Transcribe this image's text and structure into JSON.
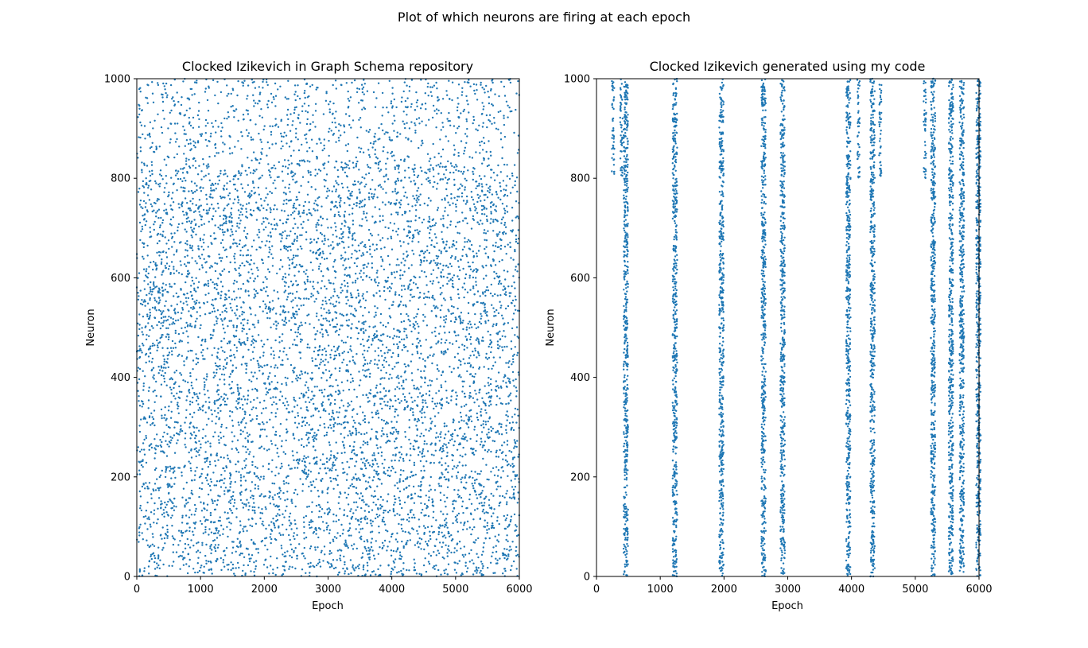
{
  "figure": {
    "suptitle": "Plot of which neurons are firing at each epoch"
  },
  "chart_data": [
    {
      "type": "scatter",
      "title": "Clocked Izikevich in Graph Schema repository",
      "xlabel": "Epoch",
      "ylabel": "Neuron",
      "xlim": [
        0,
        6000
      ],
      "ylim": [
        0,
        1000
      ],
      "xticks": [
        0,
        1000,
        2000,
        3000,
        4000,
        5000,
        6000
      ],
      "yticks": [
        0,
        200,
        400,
        600,
        800,
        1000
      ],
      "grid": false,
      "color": "#1f77b4",
      "pattern": "uniform-random",
      "approx_points": 7500,
      "denser_below_neuron": 830
    },
    {
      "type": "scatter",
      "title": "Clocked Izikevich generated using my code",
      "xlabel": "Epoch",
      "ylabel": "Neuron",
      "xlim": [
        0,
        6000
      ],
      "ylim": [
        0,
        1000
      ],
      "xticks": [
        0,
        1000,
        2000,
        3000,
        4000,
        5000,
        6000
      ],
      "yticks": [
        0,
        200,
        400,
        600,
        800,
        1000
      ],
      "grid": false,
      "color": "#1f77b4",
      "pattern": "synchronized-bursts",
      "bursts": [
        {
          "epoch": 460,
          "neuron_range": [
            0,
            1000
          ]
        },
        {
          "epoch": 1230,
          "neuron_range": [
            0,
            1000
          ]
        },
        {
          "epoch": 1960,
          "neuron_range": [
            0,
            1000
          ]
        },
        {
          "epoch": 2620,
          "neuron_range": [
            0,
            1000
          ]
        },
        {
          "epoch": 2920,
          "neuron_range": [
            0,
            1000
          ]
        },
        {
          "epoch": 3950,
          "neuron_range": [
            0,
            1000
          ]
        },
        {
          "epoch": 4330,
          "neuron_range": [
            0,
            1000
          ]
        },
        {
          "epoch": 5280,
          "neuron_range": [
            0,
            1000
          ]
        },
        {
          "epoch": 5560,
          "neuron_range": [
            0,
            1000
          ]
        },
        {
          "epoch": 5730,
          "neuron_range": [
            0,
            1000
          ]
        },
        {
          "epoch": 5990,
          "neuron_range": [
            0,
            1000
          ]
        }
      ],
      "sparse_upper_clusters": [
        {
          "epoch": 260,
          "neuron_range": [
            800,
            1000
          ]
        },
        {
          "epoch": 390,
          "neuron_range": [
            800,
            1000
          ]
        },
        {
          "epoch": 4110,
          "neuron_range": [
            800,
            1000
          ]
        },
        {
          "epoch": 4450,
          "neuron_range": [
            800,
            1000
          ]
        },
        {
          "epoch": 5150,
          "neuron_range": [
            800,
            1000
          ]
        }
      ]
    }
  ]
}
